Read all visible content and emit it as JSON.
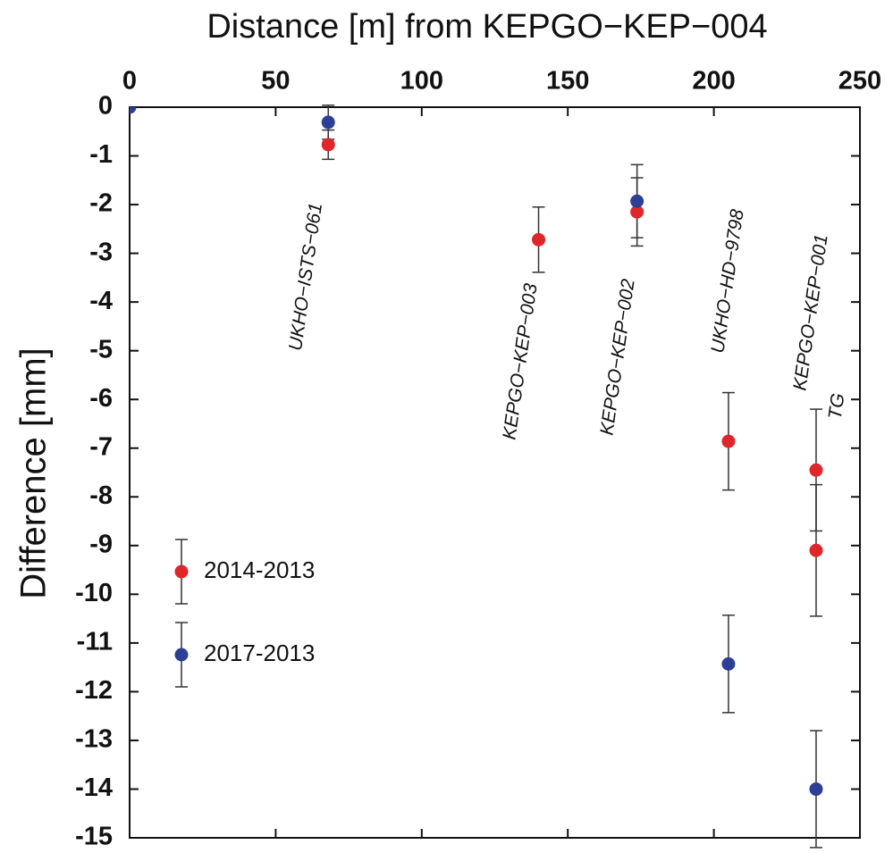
{
  "chart_data": {
    "type": "scatter",
    "title": "Distance [m] from KEPGO−KEP−004",
    "y_label": "Difference [mm]",
    "xlim": [
      0,
      250
    ],
    "xticks": [
      0,
      50,
      100,
      150,
      200,
      250
    ],
    "ylim": [
      -15,
      0
    ],
    "yticks": [
      0,
      -1,
      -2,
      -3,
      -4,
      -5,
      -6,
      -7,
      -8,
      -9,
      -10,
      -11,
      -12,
      -13,
      -14,
      -15
    ],
    "legend": "lower-left",
    "series": [
      {
        "name": "2014-2013",
        "color": "#e0262b",
        "x": [
          68,
          140,
          173.7,
          205,
          235,
          235
        ],
        "values": [
          -0.77,
          -2.72,
          -2.15,
          -6.86,
          -7.45,
          -9.1
        ],
        "errors": [
          0.3,
          0.67,
          0.7,
          1.0,
          1.25,
          1.35
        ]
      },
      {
        "name": "2017-2013",
        "color": "#2c3f95",
        "x": [
          0,
          68,
          173.7,
          205,
          235
        ],
        "values": [
          0,
          -0.31,
          -1.93,
          -11.43,
          -14.0
        ],
        "errors": [
          0,
          0.35,
          0.75,
          1.0,
          1.2
        ]
      }
    ],
    "annotations": [
      "UKHO−ISTS−061",
      "KEPGO−KEP−003",
      "KEPGO−KEP−002",
      "UKHO−HD−9798",
      "KEPGO−KEP−001",
      "TG"
    ]
  }
}
